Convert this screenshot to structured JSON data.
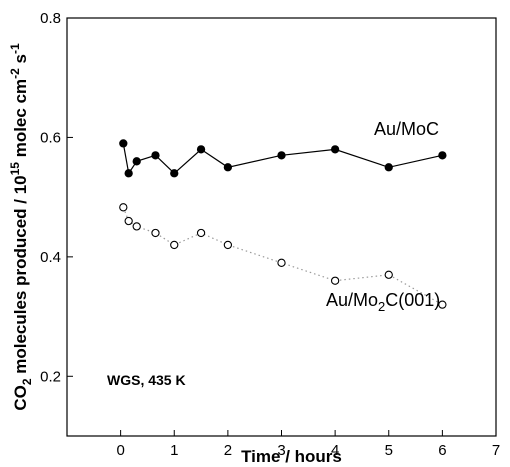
{
  "chart_data": {
    "type": "scatter",
    "xlabel": "Time / hours",
    "ylabel": {
      "prefix": "CO",
      "sub": "2",
      "mid1": " molecules produced / 10",
      "sup1": "15",
      "mid2": " molec cm",
      "sup2": "-2",
      "mid3": " s",
      "sup3": "-1"
    },
    "xlim": [
      -1,
      7
    ],
    "ylim": [
      0.1,
      0.8
    ],
    "xticks": [
      0,
      1,
      2,
      3,
      4,
      5,
      6,
      7
    ],
    "yticks": [
      0.2,
      0.4,
      0.6,
      0.8
    ],
    "ytick_labels": [
      "0.2",
      "0.4",
      "0.6",
      "0.8"
    ],
    "grid": false,
    "series": [
      {
        "name": "Au/MoC",
        "marker": "filled-circle",
        "line": "solid",
        "color": "#000000",
        "points": [
          {
            "x": 0.05,
            "y": 0.59
          },
          {
            "x": 0.15,
            "y": 0.54
          },
          {
            "x": 0.3,
            "y": 0.56
          },
          {
            "x": 0.65,
            "y": 0.57
          },
          {
            "x": 1.0,
            "y": 0.54
          },
          {
            "x": 1.5,
            "y": 0.58
          },
          {
            "x": 2.0,
            "y": 0.55
          },
          {
            "x": 3.0,
            "y": 0.57
          },
          {
            "x": 4.0,
            "y": 0.58
          },
          {
            "x": 5.0,
            "y": 0.55
          },
          {
            "x": 6.0,
            "y": 0.57
          }
        ]
      },
      {
        "name": "Au/Mo2C(001)",
        "marker": "open-circle",
        "line": "dotted",
        "color": "#000000",
        "points": [
          {
            "x": 0.05,
            "y": 0.483
          },
          {
            "x": 0.15,
            "y": 0.46
          },
          {
            "x": 0.3,
            "y": 0.451
          },
          {
            "x": 0.65,
            "y": 0.44
          },
          {
            "x": 1.0,
            "y": 0.42
          },
          {
            "x": 1.5,
            "y": 0.44
          },
          {
            "x": 2.0,
            "y": 0.42
          },
          {
            "x": 3.0,
            "y": 0.39
          },
          {
            "x": 4.0,
            "y": 0.36
          },
          {
            "x": 5.0,
            "y": 0.37
          },
          {
            "x": 6.0,
            "y": 0.32
          }
        ]
      }
    ],
    "labels": {
      "series1": "Au/MoC",
      "series2_pre": "Au/Mo",
      "series2_sub": "2",
      "series2_post": "C(001)",
      "condition": "WGS, 435 K"
    }
  }
}
